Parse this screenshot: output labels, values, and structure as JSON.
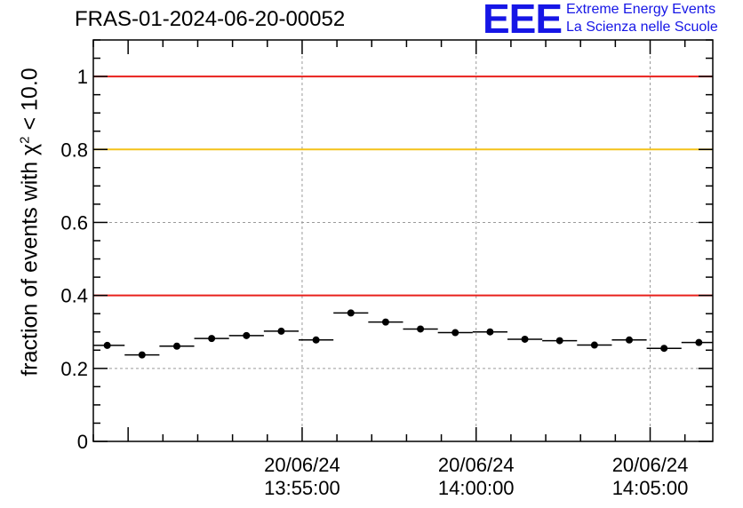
{
  "header": {
    "title": "FRAS-01-2024-06-20-00052"
  },
  "logo": {
    "mark": "EEE",
    "line1": "Extreme Energy Events",
    "line2": "La Scienza nelle Scuole",
    "color": "#1616e6"
  },
  "chart_data": {
    "type": "scatter",
    "title": "FRAS-01-2024-06-20-00052",
    "xlabel": "",
    "ylabel_prefix": "fraction of events with ",
    "ylabel_symbol": "χ",
    "ylabel_sup": "2",
    "ylabel_suffix": " < 10.0",
    "x_unit": "minutes from 13:55:00",
    "xlim": [
      -6.0,
      11.8
    ],
    "ylim": [
      0,
      1.1
    ],
    "yticks": [
      0,
      0.2,
      0.4,
      0.6,
      0.8,
      1
    ],
    "ytick_labels": [
      "0",
      "0.2",
      "0.4",
      "0.6",
      "0.8",
      "1"
    ],
    "xticks": [
      {
        "x": 0,
        "date": "20/06/24",
        "time": "13:55:00"
      },
      {
        "x": 5,
        "date": "20/06/24",
        "time": "14:00:00"
      },
      {
        "x": 10,
        "date": "20/06/24",
        "time": "14:05:00"
      }
    ],
    "bin_width": 1.0,
    "points": [
      {
        "x": -5.6,
        "y": 0.263
      },
      {
        "x": -4.6,
        "y": 0.237
      },
      {
        "x": -3.6,
        "y": 0.261
      },
      {
        "x": -2.6,
        "y": 0.282
      },
      {
        "x": -1.6,
        "y": 0.29
      },
      {
        "x": -0.6,
        "y": 0.302
      },
      {
        "x": 0.4,
        "y": 0.278
      },
      {
        "x": 1.4,
        "y": 0.352
      },
      {
        "x": 2.4,
        "y": 0.327
      },
      {
        "x": 3.4,
        "y": 0.308
      },
      {
        "x": 4.4,
        "y": 0.298
      },
      {
        "x": 5.4,
        "y": 0.3
      },
      {
        "x": 6.4,
        "y": 0.28
      },
      {
        "x": 7.4,
        "y": 0.276
      },
      {
        "x": 8.4,
        "y": 0.264
      },
      {
        "x": 9.4,
        "y": 0.278
      },
      {
        "x": 10.4,
        "y": 0.255
      },
      {
        "x": 11.4,
        "y": 0.271
      }
    ],
    "reference_lines": [
      {
        "y": 1.0,
        "color": "#e8201c"
      },
      {
        "y": 0.8,
        "color": "#f4c21a"
      },
      {
        "y": 0.4,
        "color": "#e8201c"
      }
    ],
    "grid": true
  }
}
